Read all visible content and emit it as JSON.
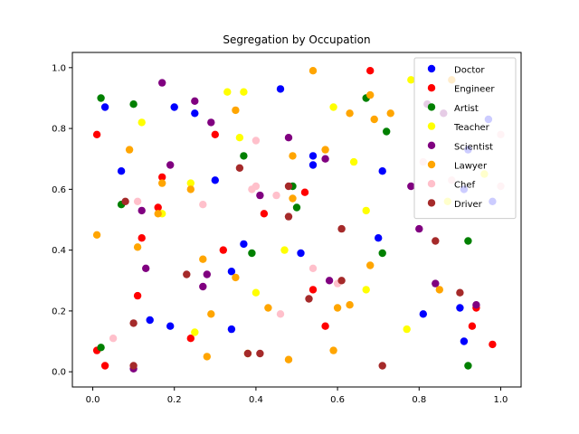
{
  "chart_data": {
    "type": "scatter",
    "title": "Segregation by Occupation",
    "xlabel": "",
    "ylabel": "",
    "xlim": [
      -0.05,
      1.05
    ],
    "ylim": [
      -0.05,
      1.05
    ],
    "xticks": [
      "0.0",
      "0.2",
      "0.4",
      "0.6",
      "0.8",
      "1.0"
    ],
    "yticks": [
      "0.0",
      "0.2",
      "0.4",
      "0.6",
      "0.8",
      "1.0"
    ],
    "grid": false,
    "legend_position": "top-right",
    "series": [
      {
        "name": "Doctor",
        "color": "#0000ff",
        "points": [
          [
            0.03,
            0.87
          ],
          [
            0.07,
            0.66
          ],
          [
            0.14,
            0.17
          ],
          [
            0.19,
            0.15
          ],
          [
            0.2,
            0.87
          ],
          [
            0.25,
            0.85
          ],
          [
            0.3,
            0.63
          ],
          [
            0.34,
            0.33
          ],
          [
            0.34,
            0.14
          ],
          [
            0.37,
            0.42
          ],
          [
            0.46,
            0.93
          ],
          [
            0.51,
            0.39
          ],
          [
            0.54,
            0.68
          ],
          [
            0.54,
            0.71
          ],
          [
            0.7,
            0.44
          ],
          [
            0.71,
            0.66
          ],
          [
            0.81,
            0.19
          ],
          [
            0.9,
            0.21
          ],
          [
            0.91,
            0.1
          ],
          [
            0.91,
            0.6
          ],
          [
            0.92,
            0.73
          ],
          [
            0.97,
            0.83
          ],
          [
            0.98,
            0.56
          ]
        ]
      },
      {
        "name": "Engineer",
        "color": "#ff0000",
        "points": [
          [
            0.01,
            0.07
          ],
          [
            0.01,
            0.78
          ],
          [
            0.03,
            0.02
          ],
          [
            0.11,
            0.25
          ],
          [
            0.12,
            0.44
          ],
          [
            0.16,
            0.54
          ],
          [
            0.17,
            0.64
          ],
          [
            0.24,
            0.11
          ],
          [
            0.3,
            0.78
          ],
          [
            0.32,
            0.4
          ],
          [
            0.42,
            0.52
          ],
          [
            0.52,
            0.59
          ],
          [
            0.54,
            0.27
          ],
          [
            0.57,
            0.15
          ],
          [
            0.68,
            0.99
          ],
          [
            0.93,
            0.15
          ],
          [
            0.94,
            0.21
          ],
          [
            0.98,
            0.09
          ]
        ]
      },
      {
        "name": "Artist",
        "color": "#008000",
        "points": [
          [
            0.02,
            0.08
          ],
          [
            0.02,
            0.9
          ],
          [
            0.07,
            0.55
          ],
          [
            0.1,
            0.88
          ],
          [
            0.37,
            0.71
          ],
          [
            0.39,
            0.39
          ],
          [
            0.49,
            0.61
          ],
          [
            0.5,
            0.54
          ],
          [
            0.67,
            0.9
          ],
          [
            0.71,
            0.39
          ],
          [
            0.72,
            0.79
          ],
          [
            0.92,
            0.02
          ],
          [
            0.92,
            0.43
          ]
        ]
      },
      {
        "name": "Teacher",
        "color": "#ffff00",
        "points": [
          [
            0.12,
            0.82
          ],
          [
            0.17,
            0.52
          ],
          [
            0.24,
            0.62
          ],
          [
            0.25,
            0.13
          ],
          [
            0.33,
            0.92
          ],
          [
            0.36,
            0.77
          ],
          [
            0.37,
            0.92
          ],
          [
            0.38,
            0.06
          ],
          [
            0.4,
            0.26
          ],
          [
            0.47,
            0.4
          ],
          [
            0.59,
            0.87
          ],
          [
            0.64,
            0.69
          ],
          [
            0.67,
            0.53
          ],
          [
            0.67,
            0.27
          ],
          [
            0.77,
            0.14
          ],
          [
            0.78,
            0.96
          ],
          [
            0.87,
            0.56
          ],
          [
            0.96,
            0.65
          ]
        ]
      },
      {
        "name": "Scientist",
        "color": "#800080",
        "points": [
          [
            0.1,
            0.01
          ],
          [
            0.12,
            0.53
          ],
          [
            0.13,
            0.34
          ],
          [
            0.17,
            0.95
          ],
          [
            0.19,
            0.68
          ],
          [
            0.25,
            0.89
          ],
          [
            0.27,
            0.28
          ],
          [
            0.28,
            0.32
          ],
          [
            0.29,
            0.82
          ],
          [
            0.41,
            0.58
          ],
          [
            0.48,
            0.77
          ],
          [
            0.57,
            0.7
          ],
          [
            0.58,
            0.3
          ],
          [
            0.78,
            0.61
          ],
          [
            0.8,
            0.47
          ],
          [
            0.82,
            0.88
          ],
          [
            0.84,
            0.29
          ],
          [
            0.86,
            0.85
          ],
          [
            0.94,
            0.22
          ]
        ]
      },
      {
        "name": "Lawyer",
        "color": "#ffa500",
        "points": [
          [
            0.01,
            0.45
          ],
          [
            0.09,
            0.73
          ],
          [
            0.11,
            0.41
          ],
          [
            0.16,
            0.52
          ],
          [
            0.17,
            0.62
          ],
          [
            0.24,
            0.6
          ],
          [
            0.27,
            0.37
          ],
          [
            0.28,
            0.05
          ],
          [
            0.29,
            0.19
          ],
          [
            0.35,
            0.31
          ],
          [
            0.35,
            0.86
          ],
          [
            0.43,
            0.21
          ],
          [
            0.48,
            0.04
          ],
          [
            0.49,
            0.57
          ],
          [
            0.49,
            0.71
          ],
          [
            0.54,
            0.99
          ],
          [
            0.57,
            0.73
          ],
          [
            0.59,
            0.07
          ],
          [
            0.6,
            0.21
          ],
          [
            0.63,
            0.22
          ],
          [
            0.63,
            0.85
          ],
          [
            0.68,
            0.35
          ],
          [
            0.68,
            0.91
          ],
          [
            0.69,
            0.83
          ],
          [
            0.73,
            0.85
          ],
          [
            0.85,
            0.27
          ],
          [
            0.88,
            0.96
          ]
        ]
      },
      {
        "name": "Chef",
        "color": "#ffc0cb",
        "points": [
          [
            0.05,
            0.11
          ],
          [
            0.11,
            0.56
          ],
          [
            0.27,
            0.55
          ],
          [
            0.39,
            0.6
          ],
          [
            0.4,
            0.61
          ],
          [
            0.4,
            0.76
          ],
          [
            0.45,
            0.58
          ],
          [
            0.46,
            0.19
          ],
          [
            0.54,
            0.34
          ],
          [
            0.6,
            0.29
          ],
          [
            0.81,
            0.69
          ],
          [
            0.88,
            0.63
          ],
          [
            1.0,
            0.61
          ],
          [
            1.0,
            0.78
          ]
        ]
      },
      {
        "name": "Driver",
        "color": "#a52a2a",
        "points": [
          [
            0.08,
            0.56
          ],
          [
            0.1,
            0.16
          ],
          [
            0.1,
            0.02
          ],
          [
            0.23,
            0.32
          ],
          [
            0.36,
            0.67
          ],
          [
            0.38,
            0.06
          ],
          [
            0.41,
            0.06
          ],
          [
            0.48,
            0.51
          ],
          [
            0.48,
            0.61
          ],
          [
            0.53,
            0.24
          ],
          [
            0.61,
            0.3
          ],
          [
            0.61,
            0.47
          ],
          [
            0.71,
            0.02
          ],
          [
            0.84,
            0.43
          ],
          [
            0.9,
            0.26
          ]
        ]
      }
    ]
  }
}
